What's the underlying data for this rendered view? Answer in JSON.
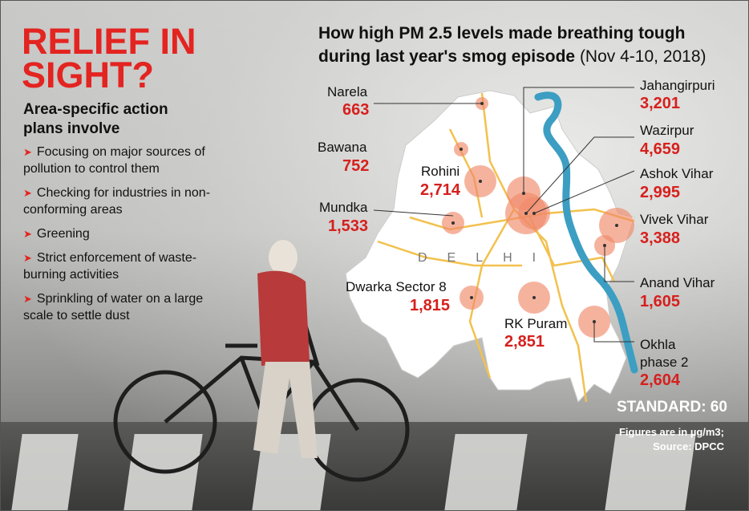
{
  "headline": [
    "RELIEF IN",
    "SIGHT?"
  ],
  "subhead": "Area-specific action plans involve",
  "bullets": [
    "Focusing on major sources of pollution to control them",
    "Checking for industries in non-conforming areas",
    "Greening",
    "Strict enforcement of waste-burning activities",
    "Sprinkling of water on a large scale to settle dust"
  ],
  "bullet_icon": "red-arrow-icon",
  "title_bold": "How high PM 2.5 levels made breathing tough during last year's smog episode",
  "title_normal": "(Nov 4-10, 2018)",
  "map_label": "DELHI",
  "locations": [
    {
      "name": "Narela",
      "value": "663"
    },
    {
      "name": "Bawana",
      "value": "752"
    },
    {
      "name": "Rohini",
      "value": "2,714"
    },
    {
      "name": "Mundka",
      "value": "1,533"
    },
    {
      "name": "Dwarka Sector 8",
      "value": "1,815"
    },
    {
      "name": "RK Puram",
      "value": "2,851"
    },
    {
      "name": "Jahangirpuri",
      "value": "3,201"
    },
    {
      "name": "Wazirpur",
      "value": "4,659"
    },
    {
      "name": "Ashok Vihar",
      "value": "2,995"
    },
    {
      "name": "Vivek Vihar",
      "value": "3,388"
    },
    {
      "name": "Anand Vihar",
      "value": "1,605"
    },
    {
      "name": "Okhla",
      "name2": "phase 2",
      "value": "2,604"
    }
  ],
  "standard": "STANDARD: 60",
  "footnote": [
    "Figures are in µg/m3;",
    "Source: DPCC"
  ],
  "colors": {
    "accent": "#e32420",
    "river": "#3c9ec2",
    "roads": "#f2c14e",
    "bubble": "#f08a6a"
  }
}
